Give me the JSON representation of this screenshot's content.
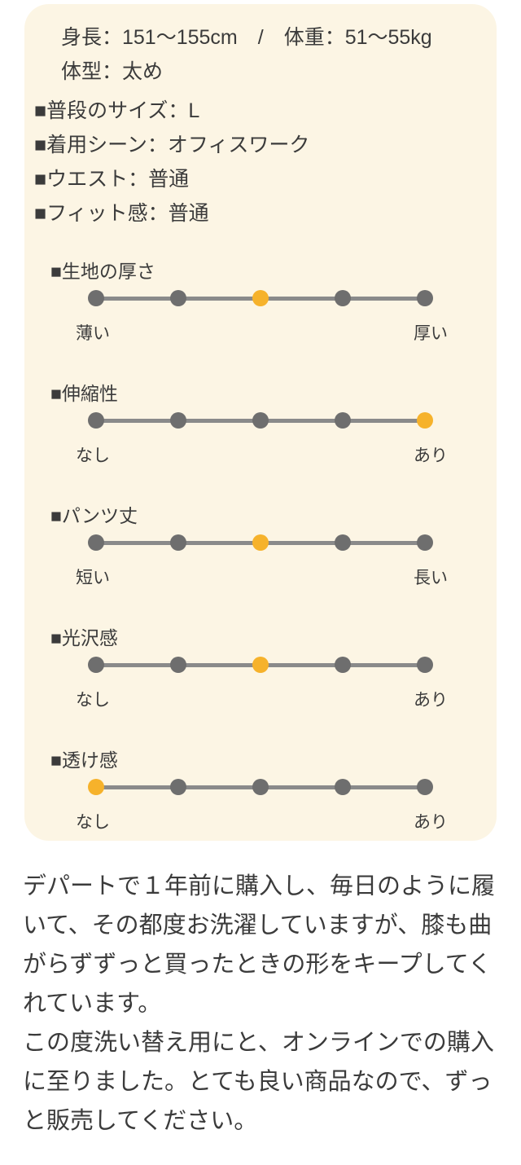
{
  "card": {
    "profile_lines": [
      "身長：151〜155cm　/　体重：51〜55kg",
      "体型：太め"
    ],
    "info_items": [
      "■普段のサイズ：L",
      "■着用シーン：オフィスワーク",
      "■ウエスト：普通",
      "■フィット感：普通"
    ],
    "scale_points": 5,
    "scales": [
      {
        "label": "■生地の厚さ",
        "min_label": "薄い",
        "max_label": "厚い",
        "value": 3
      },
      {
        "label": "■伸縮性",
        "min_label": "なし",
        "max_label": "あり",
        "value": 5
      },
      {
        "label": "■パンツ丈",
        "min_label": "短い",
        "max_label": "長い",
        "value": 3
      },
      {
        "label": "■光沢感",
        "min_label": "なし",
        "max_label": "あり",
        "value": 3
      },
      {
        "label": "■透け感",
        "min_label": "なし",
        "max_label": "あり",
        "value": 1
      }
    ]
  },
  "review": {
    "paragraphs": [
      "デパートで１年前に購入し、毎日のように履いて、その都度お洗濯していますが、膝も曲がらずずっと買ったときの形をキープしてくれています。",
      "この度洗い替え用にと、オンラインでの購入に至りました。とても良い商品なので、ずっと販売してください。"
    ]
  },
  "colors": {
    "page_bg": "#ffffff",
    "card_bg": "#fcf5e4",
    "accent_yellow": "#f6b22b",
    "dot_gray": "#6e6e6e",
    "line_gray": "#8a8a8a",
    "text": "#3b3b3b"
  }
}
